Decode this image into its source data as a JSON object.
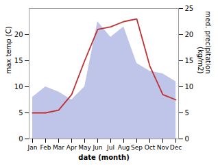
{
  "chart_data": {
    "type": "line",
    "categories": [
      "Jan",
      "Feb",
      "Mar",
      "Apr",
      "May",
      "Jun",
      "Jul",
      "Aug",
      "Sep",
      "Oct",
      "Nov",
      "Dec"
    ],
    "series": [
      {
        "type": "area",
        "color": "#bec5e8",
        "values": [
          8.0,
          10.0,
          9.0,
          7.5,
          10.0,
          22.5,
          19.5,
          21.5,
          14.5,
          13.0,
          12.5,
          11.0
        ]
      },
      {
        "type": "line",
        "color": "#c03030",
        "values": [
          5.0,
          5.0,
          5.5,
          8.5,
          15.0,
          21.0,
          21.5,
          22.5,
          23.0,
          14.0,
          8.5,
          7.5
        ]
      }
    ],
    "xlabel": "date (month)",
    "ylabel": "max temp (C)",
    "y2label": "med. precipitation\n(kg/m2)",
    "ylim": [
      0,
      25
    ],
    "yticks": [
      0,
      5,
      10,
      15,
      20
    ],
    "y2lim": [
      0,
      25
    ],
    "y2ticks": [
      0,
      5,
      10,
      15,
      20,
      25
    ],
    "grid": false
  }
}
